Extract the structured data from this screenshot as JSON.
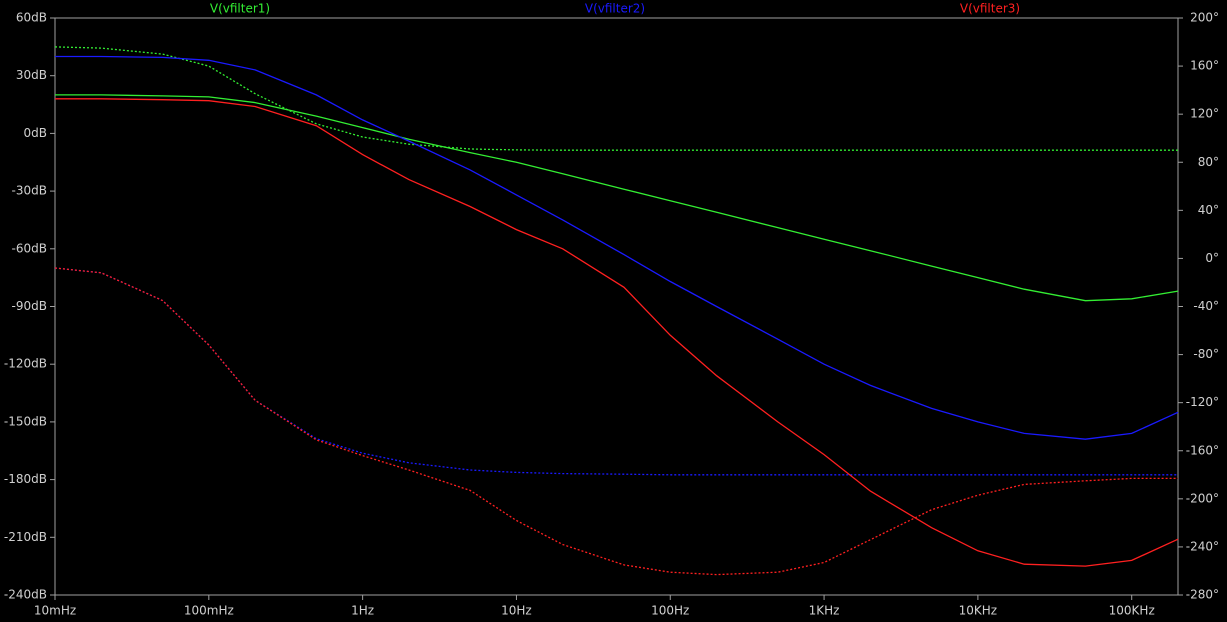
{
  "chart_data": {
    "type": "line",
    "xscale": "log",
    "x": [
      0.01,
      0.02,
      0.05,
      0.1,
      0.2,
      0.5,
      1,
      2,
      5,
      10,
      20,
      50,
      100,
      200,
      500,
      1000,
      2000,
      5000,
      10000,
      20000,
      50000,
      100000,
      200000
    ],
    "xlim": [
      0.01,
      200000
    ],
    "xticks": [
      {
        "value": 0.01,
        "label": "10mHz"
      },
      {
        "value": 0.1,
        "label": "100mHz"
      },
      {
        "value": 1,
        "label": "1Hz"
      },
      {
        "value": 10,
        "label": "10Hz"
      },
      {
        "value": 100,
        "label": "100Hz"
      },
      {
        "value": 1000,
        "label": "1KHz"
      },
      {
        "value": 10000,
        "label": "10KHz"
      },
      {
        "value": 100000,
        "label": "100KHz"
      }
    ],
    "ylim": [
      -240,
      60
    ],
    "yticks": [
      {
        "value": 60,
        "label": "60dB"
      },
      {
        "value": 30,
        "label": "30dB"
      },
      {
        "value": 0,
        "label": "0dB"
      },
      {
        "value": -30,
        "label": "-30dB"
      },
      {
        "value": -60,
        "label": "-60dB"
      },
      {
        "value": -90,
        "label": "-90dB"
      },
      {
        "value": -120,
        "label": "-120dB"
      },
      {
        "value": -150,
        "label": "-150dB"
      },
      {
        "value": -180,
        "label": "-180dB"
      },
      {
        "value": -210,
        "label": "-210dB"
      },
      {
        "value": -240,
        "label": "-240dB"
      }
    ],
    "y2lim": [
      -280,
      200
    ],
    "y2ticks": [
      {
        "value": 200,
        "label": "200°"
      },
      {
        "value": 160,
        "label": "160°"
      },
      {
        "value": 120,
        "label": "120°"
      },
      {
        "value": 80,
        "label": "80°"
      },
      {
        "value": 40,
        "label": "40°"
      },
      {
        "value": 0,
        "label": "0°"
      },
      {
        "value": -40,
        "label": "-40°"
      },
      {
        "value": -80,
        "label": "-80°"
      },
      {
        "value": -120,
        "label": "-120°"
      },
      {
        "value": -160,
        "label": "-160°"
      },
      {
        "value": -200,
        "label": "-200°"
      },
      {
        "value": -240,
        "label": "-240°"
      },
      {
        "value": -280,
        "label": "-280°"
      }
    ],
    "series": [
      {
        "name": "V(vfilter1)",
        "color": "#33ee33",
        "values": [
          20,
          20,
          19.5,
          19,
          16,
          9,
          3,
          -3,
          -10,
          -15,
          -21,
          -29,
          -35,
          -41,
          -49,
          -55,
          -61,
          -69,
          -75,
          -81,
          -87,
          -86,
          -82
        ],
        "phase": [
          176,
          175,
          170,
          160,
          137,
          112,
          101,
          95,
          91,
          90.3,
          90,
          90,
          90,
          90,
          90,
          90,
          90,
          90,
          90,
          90,
          90,
          90,
          90
        ]
      },
      {
        "name": "V(vfilter2)",
        "color": "#1a1aff",
        "values": [
          40,
          40,
          39.5,
          38,
          33,
          20,
          7,
          -4,
          -19,
          -32,
          -45,
          -63,
          -77,
          -90,
          -107,
          -120,
          -131,
          -143,
          -150,
          -156,
          -159,
          -156,
          -145
        ],
        "phase": [
          -8,
          -12,
          -35,
          -72,
          -118,
          -150,
          -162,
          -170,
          -176,
          -178,
          -179,
          -179.5,
          -180,
          -180,
          -180,
          -180,
          -180,
          -180,
          -180,
          -180,
          -180,
          -180,
          -180
        ]
      },
      {
        "name": "V(vfilter3)",
        "color": "#ff2020",
        "values": [
          18,
          18,
          17.5,
          17,
          14,
          4,
          -11,
          -24,
          -38,
          -50,
          -60,
          -80,
          -105,
          -126,
          -150,
          -167,
          -186,
          -205,
          -217,
          -224,
          -225,
          -222,
          -211
        ],
        "phase": [
          -8,
          -12,
          -35,
          -72,
          -118,
          -151,
          -164,
          -176,
          -193,
          -218,
          -238,
          -255,
          -261,
          -263,
          -261,
          -253,
          -234,
          -209,
          -197,
          -188,
          -185,
          -183,
          -183
        ]
      }
    ]
  }
}
